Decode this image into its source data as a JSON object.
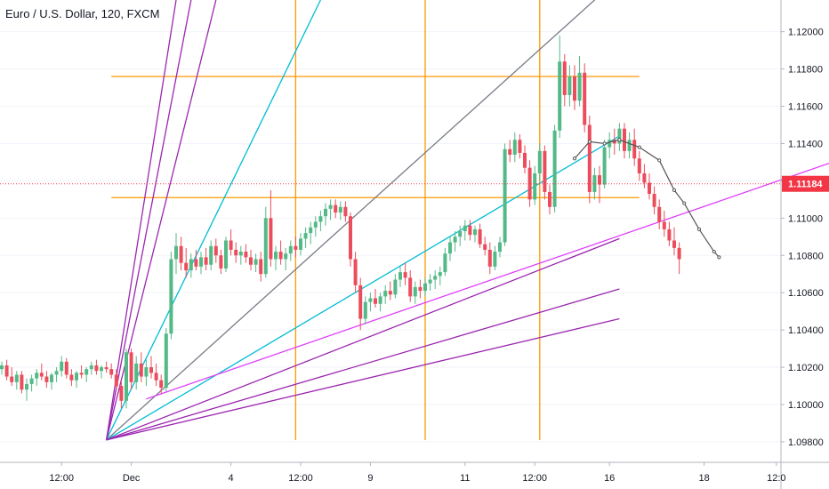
{
  "chart_data": {
    "type": "candlestick",
    "title": "Euro / U.S. Dollar, 120, FXCM",
    "y_ticks": [
      "1.12000",
      "1.11800",
      "1.11600",
      "1.11400",
      "1.11200",
      "1.11000",
      "1.10800",
      "1.10600",
      "1.10400",
      "1.10200",
      "1.10000",
      "1.09800"
    ],
    "y_tick_values": [
      1.12,
      1.118,
      1.116,
      1.114,
      1.112,
      1.11,
      1.108,
      1.106,
      1.104,
      1.102,
      1.1,
      1.098
    ],
    "ylim": [
      1.0969,
      1.1217
    ],
    "x_ticks": [
      "12:00",
      "Dec",
      "4",
      "12:00",
      "9",
      "11",
      "12:00",
      "16",
      "18",
      "12:0"
    ],
    "current_price": 1.11184,
    "current_price_label": "1.11184",
    "colors": {
      "up": "#53b987",
      "down": "#eb4d5c",
      "price_line": "#f23645",
      "orange": "#ff9800",
      "purple": "#9c27b0",
      "magenta": "#e040fb",
      "cyan": "#00bcd4",
      "gray": "#787b86",
      "path": "#555555"
    },
    "candles": [
      [
        1.1019,
        1.1023,
        1.1016,
        1.1021
      ],
      [
        1.1021,
        1.1024,
        1.1013,
        1.1015
      ],
      [
        1.1015,
        1.102,
        1.101,
        1.1012
      ],
      [
        1.1012,
        1.1018,
        1.1008,
        1.1016
      ],
      [
        1.1016,
        1.1018,
        1.1006,
        1.1008
      ],
      [
        1.1008,
        1.1014,
        1.1002,
        1.1011
      ],
      [
        1.1011,
        1.1016,
        1.1007,
        1.1014
      ],
      [
        1.1014,
        1.1019,
        1.101,
        1.1017
      ],
      [
        1.1017,
        1.1022,
        1.1013,
        1.1015
      ],
      [
        1.1015,
        1.1018,
        1.1009,
        1.1012
      ],
      [
        1.1012,
        1.1017,
        1.1008,
        1.1016
      ],
      [
        1.1016,
        1.102,
        1.1012,
        1.1018
      ],
      [
        1.1018,
        1.1026,
        1.1015,
        1.1023
      ],
      [
        1.1023,
        1.1025,
        1.1014,
        1.1016
      ],
      [
        1.1016,
        1.1019,
        1.101,
        1.1013
      ],
      [
        1.1013,
        1.1018,
        1.1009,
        1.1017
      ],
      [
        1.1017,
        1.1021,
        1.1014,
        1.1016
      ],
      [
        1.1016,
        1.102,
        1.1012,
        1.1019
      ],
      [
        1.1019,
        1.1023,
        1.1016,
        1.1021
      ],
      [
        1.1021,
        1.1024,
        1.1016,
        1.1018
      ],
      [
        1.1018,
        1.1021,
        1.1014,
        1.102
      ],
      [
        1.102,
        1.1023,
        1.1017,
        1.1019
      ],
      [
        1.1019,
        1.1022,
        1.1014,
        1.1016
      ],
      [
        1.1016,
        1.1019,
        1.1008,
        1.101
      ],
      [
        1.101,
        1.1013,
        1.0998,
        1.1002
      ],
      [
        1.1002,
        1.103,
        1.0998,
        1.1028
      ],
      [
        1.1028,
        1.103,
        1.1008,
        1.1012
      ],
      [
        1.1012,
        1.1026,
        1.1008,
        1.1022
      ],
      [
        1.1022,
        1.1028,
        1.1012,
        1.1015
      ],
      [
        1.1015,
        1.1024,
        1.101,
        1.102
      ],
      [
        1.102,
        1.1026,
        1.1014,
        1.1017
      ],
      [
        1.1017,
        1.1022,
        1.101,
        1.1013
      ],
      [
        1.1013,
        1.1016,
        1.1006,
        1.1009
      ],
      [
        1.1009,
        1.1041,
        1.1007,
        1.1038
      ],
      [
        1.1038,
        1.1082,
        1.1035,
        1.1078
      ],
      [
        1.1078,
        1.1092,
        1.107,
        1.1085
      ],
      [
        1.1085,
        1.109,
        1.1072,
        1.1076
      ],
      [
        1.1076,
        1.1084,
        1.1068,
        1.1072
      ],
      [
        1.1072,
        1.1081,
        1.1068,
        1.1078
      ],
      [
        1.1078,
        1.1083,
        1.1072,
        1.1074
      ],
      [
        1.1074,
        1.1082,
        1.107,
        1.1079
      ],
      [
        1.1079,
        1.1084,
        1.1072,
        1.1075
      ],
      [
        1.1075,
        1.1088,
        1.1072,
        1.1085
      ],
      [
        1.1085,
        1.1089,
        1.1076,
        1.108
      ],
      [
        1.108,
        1.1083,
        1.107,
        1.1073
      ],
      [
        1.1073,
        1.109,
        1.1071,
        1.1088
      ],
      [
        1.1088,
        1.1094,
        1.108,
        1.1083
      ],
      [
        1.1083,
        1.1087,
        1.1076,
        1.108
      ],
      [
        1.108,
        1.1085,
        1.1075,
        1.1082
      ],
      [
        1.1082,
        1.1086,
        1.1076,
        1.1079
      ],
      [
        1.1079,
        1.1083,
        1.1072,
        1.1075
      ],
      [
        1.1075,
        1.1081,
        1.1071,
        1.1078
      ],
      [
        1.1078,
        1.1082,
        1.1066,
        1.107
      ],
      [
        1.107,
        1.1106,
        1.1068,
        1.11
      ],
      [
        1.11,
        1.1115,
        1.1074,
        1.1078
      ],
      [
        1.1078,
        1.1085,
        1.1072,
        1.1082
      ],
      [
        1.1082,
        1.1088,
        1.1075,
        1.1078
      ],
      [
        1.1078,
        1.1084,
        1.1072,
        1.1081
      ],
      [
        1.1081,
        1.1088,
        1.1077,
        1.1085
      ],
      [
        1.1085,
        1.109,
        1.1079,
        1.1083
      ],
      [
        1.1083,
        1.1092,
        1.108,
        1.1089
      ],
      [
        1.1089,
        1.1095,
        1.1084,
        1.1092
      ],
      [
        1.1092,
        1.1098,
        1.1086,
        1.1095
      ],
      [
        1.1095,
        1.1101,
        1.109,
        1.1098
      ],
      [
        1.1098,
        1.1104,
        1.1093,
        1.1101
      ],
      [
        1.1101,
        1.1108,
        1.1096,
        1.1105
      ],
      [
        1.1105,
        1.111,
        1.1099,
        1.1107
      ],
      [
        1.1107,
        1.111,
        1.11,
        1.1103
      ],
      [
        1.1103,
        1.1109,
        1.1099,
        1.1106
      ],
      [
        1.1106,
        1.1109,
        1.1098,
        1.1101
      ],
      [
        1.1101,
        1.1103,
        1.1074,
        1.1078
      ],
      [
        1.1078,
        1.1082,
        1.106,
        1.1064
      ],
      [
        1.1064,
        1.1068,
        1.104,
        1.1046
      ],
      [
        1.1046,
        1.1058,
        1.1043,
        1.1055
      ],
      [
        1.1055,
        1.106,
        1.105,
        1.1057
      ],
      [
        1.1057,
        1.1062,
        1.1052,
        1.1054
      ],
      [
        1.1054,
        1.106,
        1.105,
        1.1058
      ],
      [
        1.1058,
        1.1064,
        1.1054,
        1.1061
      ],
      [
        1.1061,
        1.1066,
        1.1056,
        1.1059
      ],
      [
        1.1059,
        1.107,
        1.1057,
        1.1067
      ],
      [
        1.1067,
        1.1074,
        1.1063,
        1.1071
      ],
      [
        1.1071,
        1.1076,
        1.1064,
        1.1068
      ],
      [
        1.1068,
        1.1072,
        1.1055,
        1.1058
      ],
      [
        1.1058,
        1.1066,
        1.1054,
        1.1063
      ],
      [
        1.1063,
        1.1067,
        1.1057,
        1.1061
      ],
      [
        1.1061,
        1.1068,
        1.1058,
        1.1065
      ],
      [
        1.1065,
        1.107,
        1.1061,
        1.1067
      ],
      [
        1.1067,
        1.1072,
        1.1062,
        1.1069
      ],
      [
        1.1069,
        1.1074,
        1.1064,
        1.1071
      ],
      [
        1.1071,
        1.1084,
        1.1069,
        1.1081
      ],
      [
        1.1081,
        1.109,
        1.1077,
        1.1087
      ],
      [
        1.1087,
        1.1093,
        1.1082,
        1.109
      ],
      [
        1.109,
        1.1096,
        1.1085,
        1.1093
      ],
      [
        1.1093,
        1.1099,
        1.1088,
        1.1096
      ],
      [
        1.1096,
        1.1099,
        1.1088,
        1.1091
      ],
      [
        1.1091,
        1.1096,
        1.1087,
        1.1094
      ],
      [
        1.1094,
        1.1097,
        1.1084,
        1.1086
      ],
      [
        1.1086,
        1.109,
        1.108,
        1.1083
      ],
      [
        1.1083,
        1.1087,
        1.107,
        1.1074
      ],
      [
        1.1074,
        1.1085,
        1.1072,
        1.1082
      ],
      [
        1.1082,
        1.109,
        1.1079,
        1.1087
      ],
      [
        1.1087,
        1.114,
        1.1085,
        1.1137
      ],
      [
        1.1137,
        1.1142,
        1.113,
        1.1134
      ],
      [
        1.1134,
        1.1146,
        1.113,
        1.1142
      ],
      [
        1.1142,
        1.1145,
        1.1132,
        1.1135
      ],
      [
        1.1135,
        1.1139,
        1.1124,
        1.1127
      ],
      [
        1.1127,
        1.1131,
        1.1106,
        1.111
      ],
      [
        1.111,
        1.1128,
        1.1107,
        1.1124
      ],
      [
        1.1124,
        1.114,
        1.112,
        1.1136
      ],
      [
        1.1136,
        1.1139,
        1.111,
        1.1114
      ],
      [
        1.1114,
        1.1118,
        1.1102,
        1.1106
      ],
      [
        1.1106,
        1.115,
        1.1103,
        1.1147
      ],
      [
        1.1147,
        1.1198,
        1.1143,
        1.1184
      ],
      [
        1.1184,
        1.1188,
        1.116,
        1.1166
      ],
      [
        1.1166,
        1.1182,
        1.116,
        1.1176
      ],
      [
        1.1176,
        1.1182,
        1.1158,
        1.1163
      ],
      [
        1.1163,
        1.1187,
        1.116,
        1.1178
      ],
      [
        1.1178,
        1.1183,
        1.1146,
        1.115
      ],
      [
        1.115,
        1.1155,
        1.1108,
        1.1114
      ],
      [
        1.1114,
        1.1127,
        1.111,
        1.1123
      ],
      [
        1.1123,
        1.1128,
        1.1108,
        1.1118
      ],
      [
        1.1118,
        1.1142,
        1.1116,
        1.1138
      ],
      [
        1.1138,
        1.1146,
        1.1132,
        1.1142
      ],
      [
        1.1142,
        1.1148,
        1.1134,
        1.114
      ],
      [
        1.114,
        1.1151,
        1.1136,
        1.1148
      ],
      [
        1.1148,
        1.1151,
        1.1132,
        1.1136
      ],
      [
        1.1136,
        1.1146,
        1.1132,
        1.1142
      ],
      [
        1.1142,
        1.1148,
        1.1128,
        1.1132
      ],
      [
        1.1132,
        1.1136,
        1.112,
        1.1124
      ],
      [
        1.1124,
        1.1129,
        1.1116,
        1.1119
      ],
      [
        1.1119,
        1.1124,
        1.111,
        1.1113
      ],
      [
        1.1113,
        1.1117,
        1.1102,
        1.1106
      ],
      [
        1.1106,
        1.111,
        1.1094,
        1.1098
      ],
      [
        1.1098,
        1.1104,
        1.109,
        1.1094
      ],
      [
        1.1094,
        1.1098,
        1.1085,
        1.1088
      ],
      [
        1.1088,
        1.1095,
        1.108,
        1.1084
      ],
      [
        1.1084,
        1.1087,
        1.107,
        1.1078
      ]
    ],
    "horizontal_levels": [
      1.1176,
      1.1111
    ],
    "vertical_lines_at_candle": [
      59,
      85,
      108
    ],
    "trend_lines": [
      {
        "color": "gray",
        "from": [
          21,
          1.0981
        ],
        "to": [
          124,
          1.1229
        ]
      },
      {
        "color": "cyan",
        "from": [
          21,
          1.0981
        ],
        "to": [
          124,
          1.1144
        ]
      },
      {
        "color": "magenta",
        "from": [
          29,
          1.1003
        ],
        "to": [
          170,
          1.1133
        ]
      },
      {
        "color": "purple",
        "from": [
          21,
          1.0981
        ],
        "to": [
          124,
          1.1089
        ]
      },
      {
        "color": "purple",
        "from": [
          21,
          1.0981
        ],
        "to": [
          124,
          1.1062
        ]
      },
      {
        "color": "purple",
        "from": [
          21,
          1.0981
        ],
        "to": [
          124,
          1.1046
        ]
      }
    ],
    "steep_fan_lines": [
      {
        "color": "cyan",
        "to_x": 64
      },
      {
        "color": "purple",
        "to_x": 43
      },
      {
        "color": "purple",
        "to_x": 38
      },
      {
        "color": "purple",
        "to_x": 35
      }
    ],
    "forecast_path": [
      [
        115,
        1.1132
      ],
      [
        118,
        1.1141
      ],
      [
        121,
        1.114
      ],
      [
        124,
        1.1142
      ],
      [
        128,
        1.1138
      ],
      [
        132,
        1.1131
      ],
      [
        135,
        1.1115
      ],
      [
        137,
        1.1108
      ],
      [
        140,
        1.1094
      ],
      [
        143,
        1.1082
      ],
      [
        144,
        1.1079
      ]
    ]
  }
}
